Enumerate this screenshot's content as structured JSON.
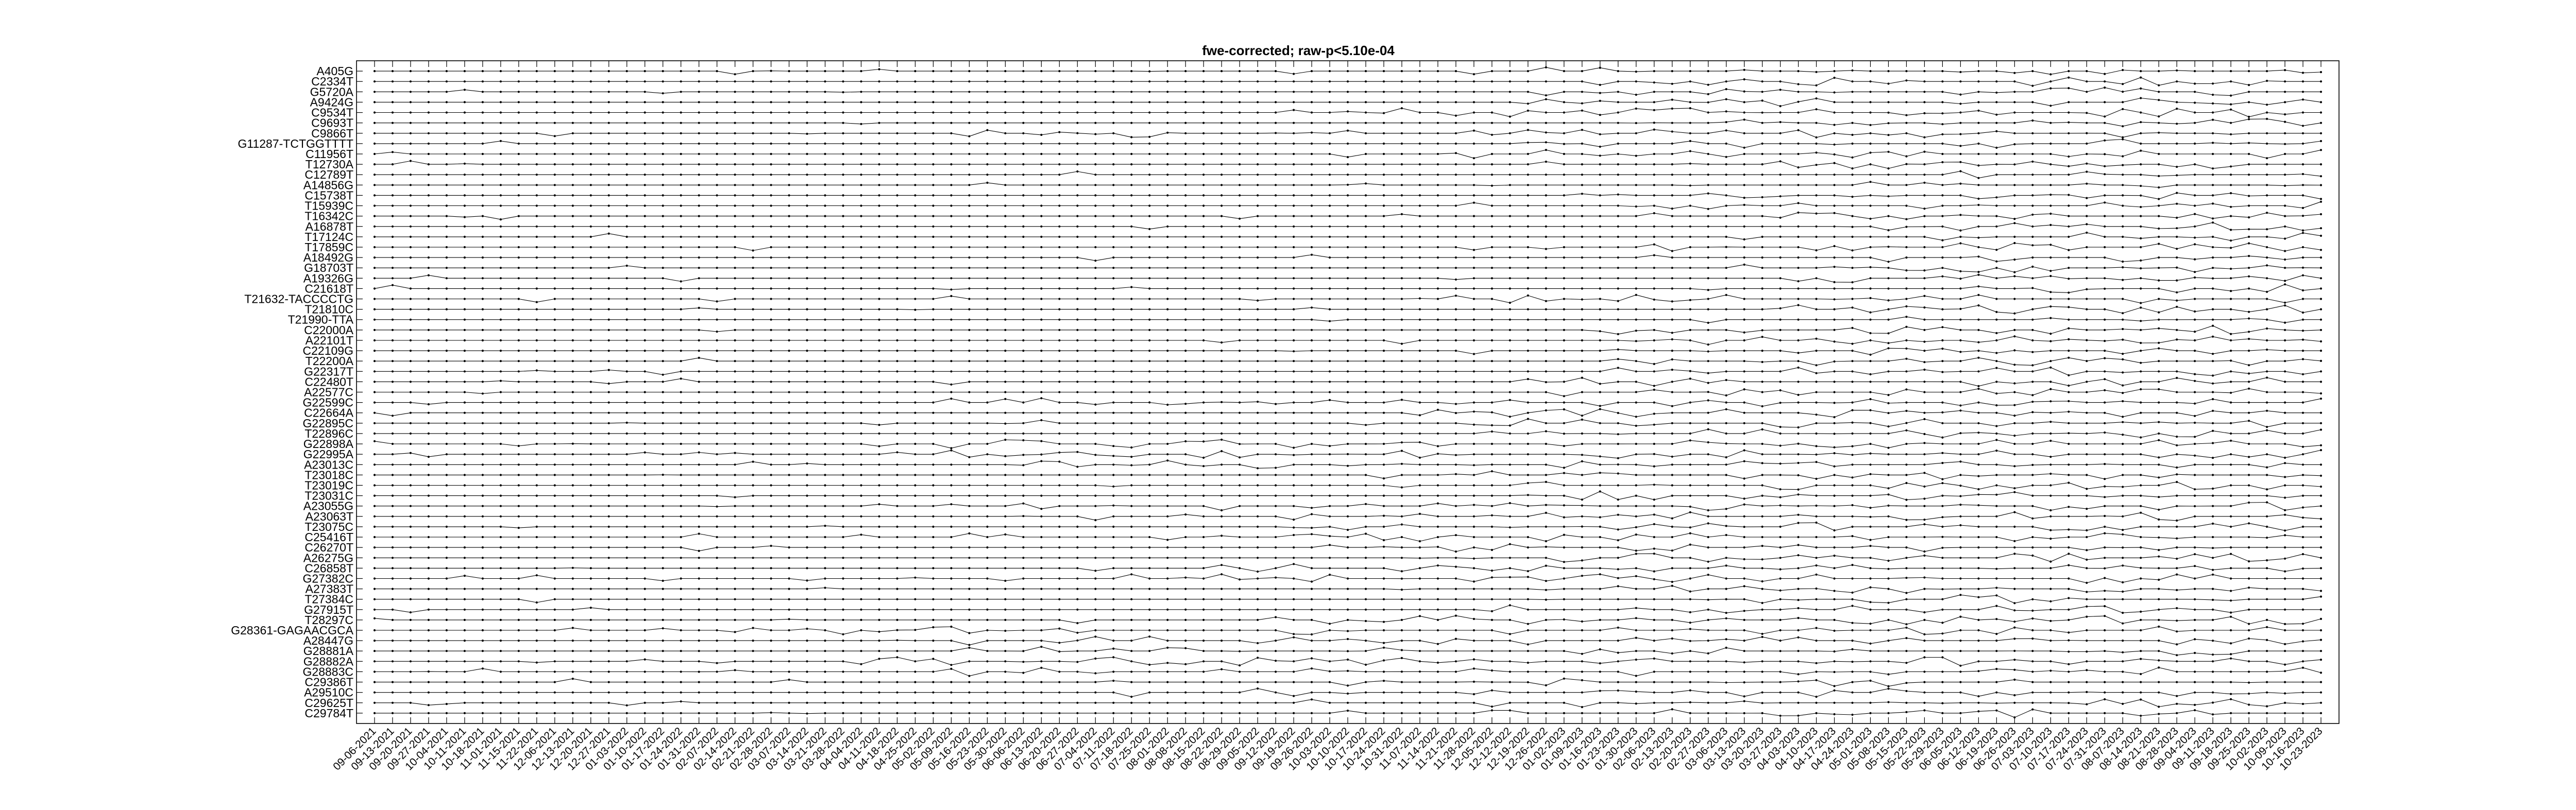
{
  "chart_data": {
    "type": "line",
    "title": "fwe-corrected; raw-p<5.10e-04",
    "xlabel": "",
    "ylabel": "",
    "grid": false,
    "legend": "none",
    "colors": {
      "axis": "#000000",
      "line": "#000000",
      "background": "#ffffff"
    },
    "series_labels": [
      "A405G",
      "C2334T",
      "G5720A",
      "A9424G",
      "C9534T",
      "C9693T",
      "C9866T",
      "G11287-TCTGGTTTT",
      "C11956T",
      "T12730A",
      "C12789T",
      "A14856G",
      "C15738T",
      "T15939C",
      "T16342C",
      "A16878T",
      "T17124C",
      "T17859C",
      "A18492G",
      "G18703T",
      "A19326G",
      "C21618T",
      "T21632-TACCCCTG",
      "T21810C",
      "T21990-TTA",
      "C22000A",
      "A22101T",
      "C22109G",
      "T22200A",
      "G22317T",
      "C22480T",
      "A22577C",
      "G22599C",
      "C22664A",
      "G22895C",
      "T22896C",
      "G22898A",
      "G22995A",
      "A23013C",
      "T23018C",
      "T23019C",
      "T23031C",
      "A23055G",
      "A23063T",
      "T23075C",
      "C25416T",
      "C26270T",
      "A26275G",
      "C26858T",
      "G27382C",
      "A27383T",
      "T27384C",
      "G27915T",
      "T28297C",
      "G28361-GAGAACGCA",
      "A28447G",
      "G28881A",
      "G28882A",
      "G28883C",
      "C29386T",
      "A29510C",
      "C29625T",
      "C29784T"
    ],
    "x_tick_labels": [
      "09-06-2021",
      "09-13-2021",
      "09-20-2021",
      "09-27-2021",
      "10-04-2021",
      "10-11-2021",
      "10-18-2021",
      "11-01-2021",
      "11-15-2021",
      "11-22-2021",
      "12-06-2021",
      "12-13-2021",
      "12-20-2021",
      "12-27-2021",
      "01-03-2022",
      "01-10-2022",
      "01-17-2022",
      "01-24-2022",
      "01-31-2022",
      "02-07-2022",
      "02-14-2022",
      "02-21-2022",
      "02-28-2022",
      "03-07-2022",
      "03-14-2022",
      "03-21-2022",
      "03-28-2022",
      "04-04-2022",
      "04-11-2022",
      "04-18-2022",
      "04-25-2022",
      "05-02-2022",
      "05-09-2022",
      "05-16-2022",
      "05-23-2022",
      "05-30-2022",
      "06-06-2022",
      "06-13-2022",
      "06-20-2022",
      "06-27-2022",
      "07-04-2022",
      "07-11-2022",
      "07-18-2022",
      "07-25-2022",
      "08-01-2022",
      "08-08-2022",
      "08-15-2022",
      "08-22-2022",
      "08-29-2022",
      "09-05-2022",
      "09-12-2022",
      "09-19-2022",
      "09-26-2022",
      "10-03-2022",
      "10-10-2022",
      "10-17-2022",
      "10-24-2022",
      "10-31-2022",
      "11-07-2022",
      "11-14-2022",
      "11-21-2022",
      "11-28-2022",
      "12-05-2022",
      "12-12-2022",
      "12-19-2022",
      "12-26-2022",
      "01-02-2023",
      "01-09-2023",
      "01-16-2023",
      "01-23-2023",
      "01-30-2023",
      "02-06-2023",
      "02-13-2023",
      "02-20-2023",
      "02-27-2023",
      "03-06-2023",
      "03-13-2023",
      "03-20-2023",
      "03-27-2023",
      "04-03-2023",
      "04-10-2023",
      "04-17-2023",
      "04-24-2023",
      "05-01-2023",
      "05-08-2023",
      "05-15-2023",
      "05-22-2023",
      "05-29-2023",
      "06-05-2023",
      "06-12-2023",
      "06-19-2023",
      "06-26-2023",
      "07-03-2023",
      "07-10-2023",
      "07-17-2023",
      "07-24-2023",
      "07-31-2023",
      "08-07-2023",
      "08-14-2023",
      "08-21-2023",
      "08-28-2023",
      "09-04-2023",
      "09-11-2023",
      "09-18-2023",
      "09-25-2023",
      "10-02-2023",
      "10-09-2023",
      "10-16-2023",
      "10-23-2023"
    ],
    "series_activity_onset": [
      60,
      60,
      60,
      60,
      40,
      60,
      20,
      60,
      50,
      60,
      80,
      80,
      60,
      60,
      60,
      70,
      70,
      60,
      70,
      80,
      70,
      80,
      40,
      70,
      80,
      60,
      60,
      60,
      60,
      60,
      60,
      60,
      30,
      40,
      50,
      60,
      20,
      12,
      20,
      60,
      60,
      60,
      30,
      30,
      40,
      30,
      40,
      50,
      40,
      20,
      60,
      60,
      60,
      40,
      10,
      20,
      15,
      15,
      15,
      40,
      40,
      50,
      60
    ]
  }
}
